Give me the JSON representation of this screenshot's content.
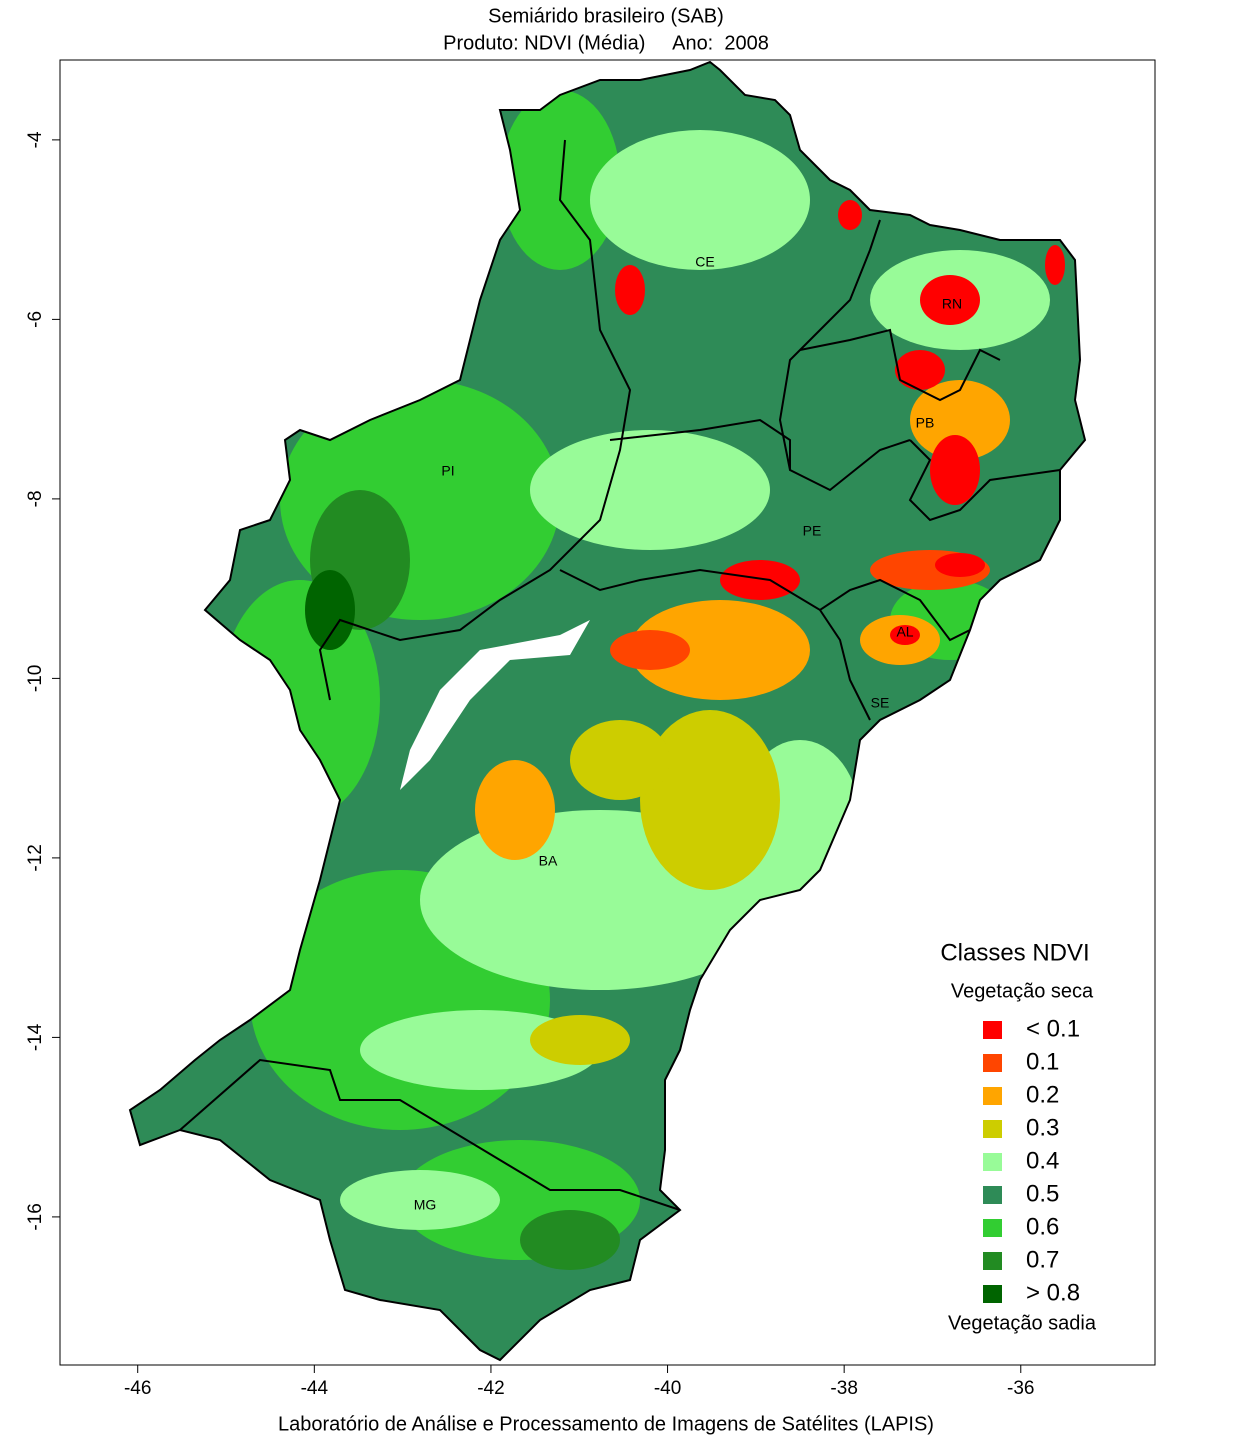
{
  "chart_data": {
    "type": "map",
    "title": "Semiárido brasileiro (SAB)",
    "subtitle": "Produto: NDVI (Média)     Ano:  2008",
    "xlim": [
      -46.88,
      -34.48
    ],
    "ylim": [
      -17.65,
      -3.11
    ],
    "xticks": [
      -46,
      -44,
      -42,
      -40,
      -38,
      -36
    ],
    "yticks": [
      -4,
      -6,
      -8,
      -10,
      -12,
      -14,
      -16
    ],
    "state_labels": [
      "CE",
      "RN",
      "PB",
      "PI",
      "PE",
      "AL",
      "SE",
      "BA",
      "MG"
    ],
    "legend": {
      "title": "Classes NDVI",
      "top_note": "Vegetação seca",
      "bottom_note": "Vegetação sadia",
      "classes": [
        {
          "label": "< 0.1",
          "color": "#ff0000"
        },
        {
          "label": "0.1",
          "color": "#ff4500"
        },
        {
          "label": "0.2",
          "color": "#ffa500"
        },
        {
          "label": "0.3",
          "color": "#cdcd00"
        },
        {
          "label": "0.4",
          "color": "#98fb98"
        },
        {
          "label": "0.5",
          "color": "#2e8b57"
        },
        {
          "label": "0.6",
          "color": "#32cd32"
        },
        {
          "label": "0.7",
          "color": "#228b22"
        },
        {
          "label": "> 0.8",
          "color": "#006400"
        }
      ]
    },
    "footer": "Laboratório de Análise e Processamento de Imagens de Satélites (LAPIS)"
  }
}
